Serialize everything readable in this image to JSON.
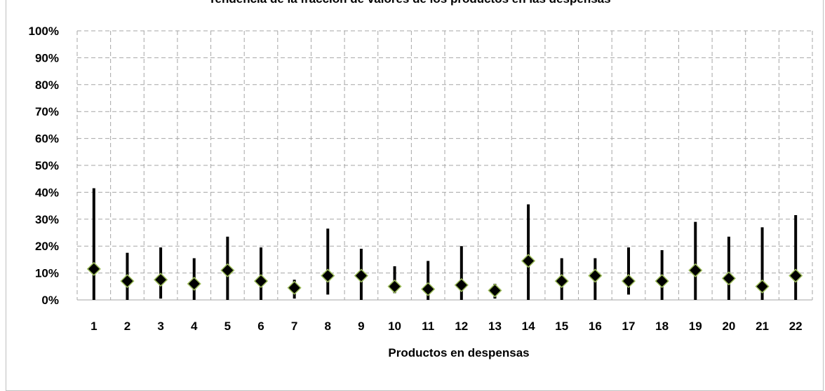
{
  "chart_data": {
    "type": "scatter",
    "title": "Tendencia de la fracción de valores de los productos en las despensas",
    "xlabel": "Productos en despensas",
    "ylabel": "",
    "categories": [
      "1",
      "2",
      "3",
      "4",
      "5",
      "6",
      "7",
      "8",
      "9",
      "10",
      "11",
      "12",
      "13",
      "14",
      "15",
      "16",
      "17",
      "18",
      "19",
      "20",
      "21",
      "22"
    ],
    "ylim": [
      0,
      100
    ],
    "yticks": [
      "0%",
      "10%",
      "20%",
      "30%",
      "40%",
      "50%",
      "60%",
      "70%",
      "80%",
      "90%",
      "100%"
    ],
    "grid": true,
    "series": [
      {
        "role": "range-min",
        "values": [
          0,
          0,
          0.5,
          0,
          0,
          0,
          0.5,
          2,
          0,
          2.5,
          0,
          0,
          0.5,
          0,
          0,
          0,
          2,
          0,
          0,
          0,
          0,
          0
        ]
      },
      {
        "role": "range-max",
        "values": [
          41.5,
          17.5,
          19.5,
          15.5,
          23.5,
          19.5,
          7.5,
          26.5,
          19,
          12.5,
          14.5,
          20,
          6,
          35.5,
          15.5,
          15.5,
          19.5,
          18.5,
          29,
          23.5,
          27,
          31.5
        ]
      },
      {
        "role": "marker",
        "values": [
          11.5,
          7,
          7.5,
          6,
          11,
          7,
          4.5,
          9,
          9,
          5,
          4,
          5.5,
          3.5,
          14.5,
          7,
          9,
          7,
          7,
          11,
          8,
          5,
          9
        ]
      }
    ],
    "colors": {
      "marker_fill": "#000000",
      "marker_stroke": "#9bbb59",
      "range_line": "#000000",
      "grid": "#a6a6a6"
    }
  }
}
